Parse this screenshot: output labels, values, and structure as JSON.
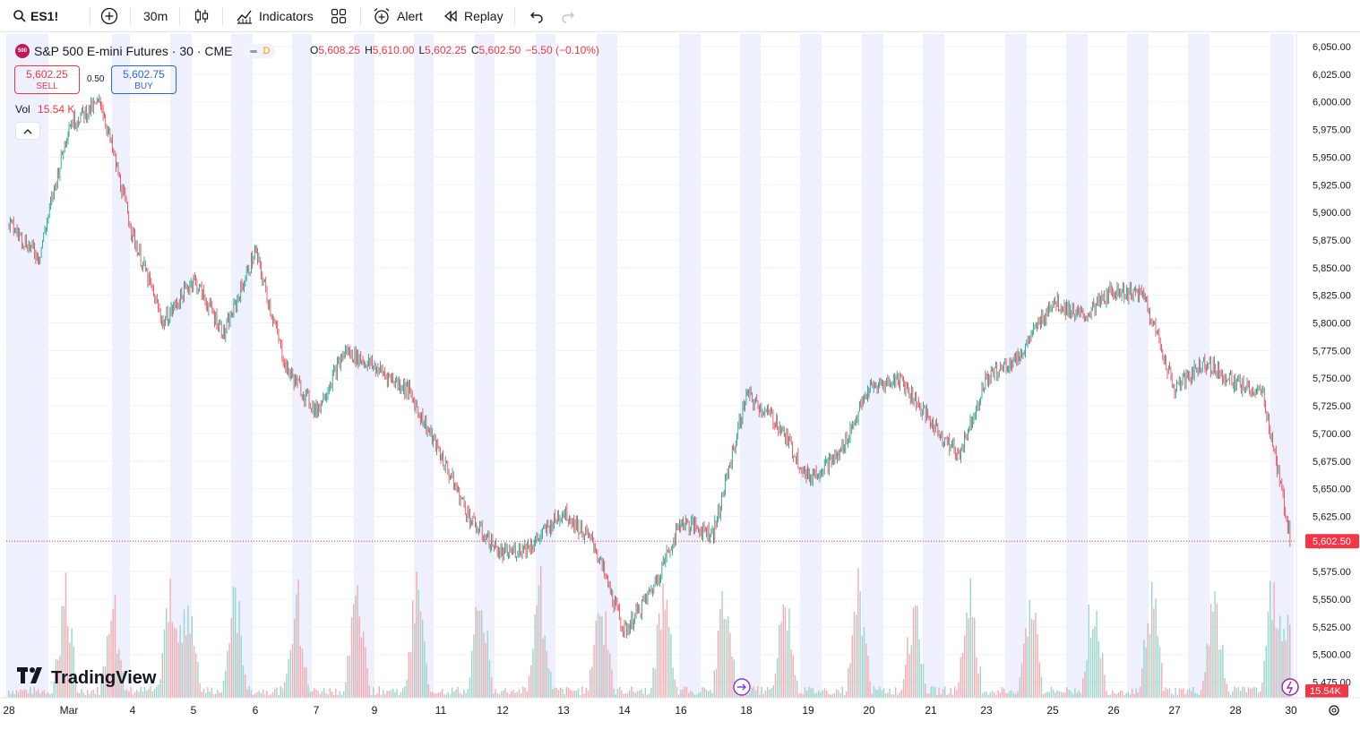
{
  "toolbar": {
    "symbol": "ES1!",
    "interval": "30m",
    "indicators": "Indicators",
    "alert": "Alert",
    "replay": "Replay"
  },
  "legend": {
    "badge": "500",
    "title": "S&P 500 E-mini Futures · 30 · CME",
    "status_badge": "D",
    "open_key": "O",
    "open": "5,608.25",
    "high_key": "H",
    "high": "5,610.00",
    "low_key": "L",
    "low": "5,602.25",
    "close_key": "C",
    "close": "5,602.50",
    "change": "−5.50 (−0.10%)"
  },
  "trade": {
    "sell_price": "5,602.25",
    "sell_label": "SELL",
    "spread": "0.50",
    "buy_price": "5,602.75",
    "buy_label": "BUY"
  },
  "volume": {
    "label": "Vol",
    "value": "15.54 K"
  },
  "price_axis": {
    "labels": [
      "6,050.00",
      "6,025.00",
      "6,000.00",
      "5,975.00",
      "5,950.00",
      "5,925.00",
      "5,900.00",
      "5,875.00",
      "5,850.00",
      "5,825.00",
      "5,800.00",
      "5,775.00",
      "5,750.00",
      "5,725.00",
      "5,700.00",
      "5,675.00",
      "5,650.00",
      "5,625.00",
      "5,600.00",
      "5,575.00",
      "5,550.00",
      "5,525.00",
      "5,500.00",
      "5,475.00"
    ],
    "last_price_tag": "5,602.50",
    "volume_tag": "15.54K"
  },
  "time_axis": {
    "labels": [
      "28",
      "Mar",
      "4",
      "5",
      "6",
      "7",
      "9",
      "11",
      "12",
      "13",
      "14",
      "16",
      "18",
      "19",
      "20",
      "21",
      "23",
      "25",
      "26",
      "27",
      "28",
      "30"
    ]
  },
  "branding": "TradingView",
  "colors": {
    "up": "#089981",
    "down": "#f23645",
    "accent": "#2962ff",
    "session_shade": "#eef1fd",
    "price_line": "#f23645"
  },
  "chart_data": {
    "type": "candlestick",
    "symbol": "ES1!",
    "interval": "30m",
    "ylim": [
      5475,
      6050
    ],
    "last_price": 5602.5,
    "path": [
      {
        "x": "Feb 28",
        "y": 5890
      },
      {
        "x": "Feb 28",
        "y": 5860
      },
      {
        "x": "Mar 3",
        "y": 5980
      },
      {
        "x": "Mar 3",
        "y": 6000
      },
      {
        "x": "Mar 4",
        "y": 5880
      },
      {
        "x": "Mar 4",
        "y": 5800
      },
      {
        "x": "Mar 5",
        "y": 5840
      },
      {
        "x": "Mar 5",
        "y": 5790
      },
      {
        "x": "Mar 6",
        "y": 5865
      },
      {
        "x": "Mar 6",
        "y": 5760
      },
      {
        "x": "Mar 7",
        "y": 5720
      },
      {
        "x": "Mar 7",
        "y": 5775
      },
      {
        "x": "Mar 9",
        "y": 5760
      },
      {
        "x": "Mar 9",
        "y": 5740
      },
      {
        "x": "Mar 11",
        "y": 5680
      },
      {
        "x": "Mar 11",
        "y": 5620
      },
      {
        "x": "Mar 12",
        "y": 5590
      },
      {
        "x": "Mar 12",
        "y": 5600
      },
      {
        "x": "Mar 13",
        "y": 5630
      },
      {
        "x": "Mar 13",
        "y": 5600
      },
      {
        "x": "Mar 14",
        "y": 5520
      },
      {
        "x": "Mar 14",
        "y": 5560
      },
      {
        "x": "Mar 16",
        "y": 5620
      },
      {
        "x": "Mar 16",
        "y": 5610
      },
      {
        "x": "Mar 18",
        "y": 5735
      },
      {
        "x": "Mar 18",
        "y": 5710
      },
      {
        "x": "Mar 19",
        "y": 5660
      },
      {
        "x": "Mar 19",
        "y": 5680
      },
      {
        "x": "Mar 20",
        "y": 5740
      },
      {
        "x": "Mar 20",
        "y": 5750
      },
      {
        "x": "Mar 21",
        "y": 5710
      },
      {
        "x": "Mar 21",
        "y": 5680
      },
      {
        "x": "Mar 23",
        "y": 5750
      },
      {
        "x": "Mar 23",
        "y": 5770
      },
      {
        "x": "Mar 25",
        "y": 5820
      },
      {
        "x": "Mar 25",
        "y": 5805
      },
      {
        "x": "Mar 26",
        "y": 5830
      },
      {
        "x": "Mar 26",
        "y": 5825
      },
      {
        "x": "Mar 27",
        "y": 5740
      },
      {
        "x": "Mar 27",
        "y": 5765
      },
      {
        "x": "Mar 28",
        "y": 5745
      },
      {
        "x": "Mar 28",
        "y": 5735
      },
      {
        "x": "Mar 30",
        "y": 5602.5
      }
    ]
  }
}
